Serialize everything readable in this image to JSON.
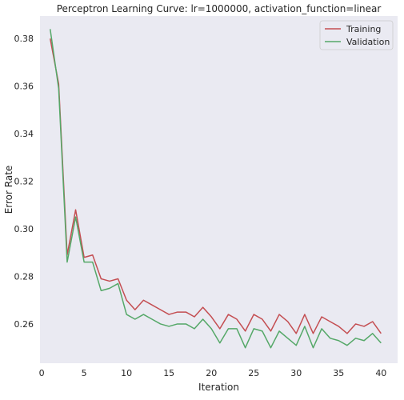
{
  "chart_data": {
    "type": "line",
    "title": "Perceptron Learning Curve: lr=1000000, activation_function=linear",
    "xlabel": "Iteration",
    "ylabel": "Error Rate",
    "xlim": [
      -0.2,
      41.95
    ],
    "ylim": [
      0.2435,
      0.3895
    ],
    "x_ticks": [
      0,
      5,
      10,
      15,
      20,
      25,
      30,
      35,
      40
    ],
    "y_ticks": [
      0.26,
      0.28,
      0.3,
      0.32,
      0.34,
      0.36,
      0.38
    ],
    "grid": false,
    "legend_position": "top-right",
    "x": [
      1,
      2,
      3,
      4,
      5,
      6,
      7,
      8,
      9,
      10,
      11,
      12,
      13,
      14,
      15,
      16,
      17,
      18,
      19,
      20,
      21,
      22,
      23,
      24,
      25,
      26,
      27,
      28,
      29,
      30,
      31,
      32,
      33,
      34,
      35,
      36,
      37,
      38,
      39,
      40
    ],
    "series": [
      {
        "name": "Training",
        "color": "#c44e52",
        "values": [
          0.38,
          0.361,
          0.289,
          0.308,
          0.288,
          0.289,
          0.279,
          0.278,
          0.279,
          0.27,
          0.266,
          0.27,
          0.268,
          0.266,
          0.264,
          0.265,
          0.265,
          0.263,
          0.267,
          0.263,
          0.258,
          0.264,
          0.262,
          0.257,
          0.264,
          0.262,
          0.257,
          0.264,
          0.261,
          0.256,
          0.264,
          0.256,
          0.263,
          0.261,
          0.259,
          0.256,
          0.26,
          0.259,
          0.261,
          0.256
        ]
      },
      {
        "name": "Validation",
        "color": "#55a868",
        "values": [
          0.384,
          0.359,
          0.286,
          0.305,
          0.286,
          0.286,
          0.274,
          0.275,
          0.277,
          0.264,
          0.262,
          0.264,
          0.262,
          0.26,
          0.259,
          0.26,
          0.26,
          0.258,
          0.262,
          0.258,
          0.252,
          0.258,
          0.258,
          0.25,
          0.258,
          0.257,
          0.25,
          0.257,
          0.254,
          0.251,
          0.259,
          0.25,
          0.258,
          0.254,
          0.253,
          0.251,
          0.254,
          0.253,
          0.256,
          0.252
        ]
      }
    ]
  }
}
